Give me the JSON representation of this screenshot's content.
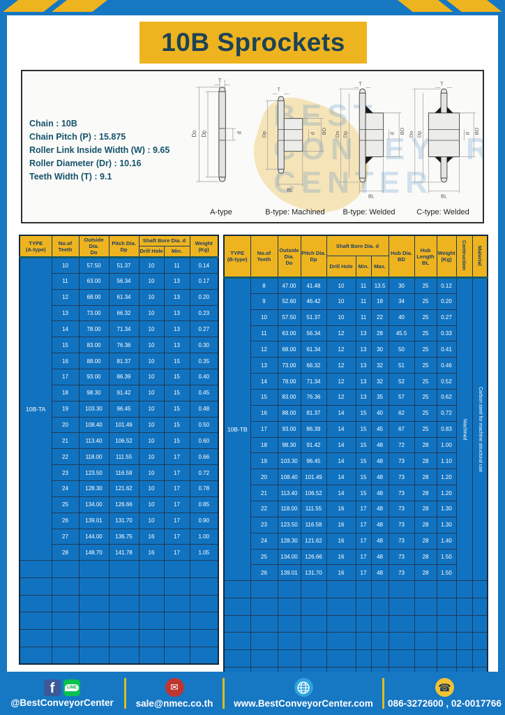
{
  "page": {
    "title": "10B Sprockets"
  },
  "specs": {
    "lines": [
      "Chain : 10B",
      "Chain Pitch (P) : 15.875",
      "Roller Link Inside Width (W) : 9.65",
      "Roller Diameter (Dr) : 10.16",
      "Teeth Width (T) : 9.1"
    ]
  },
  "diagrams": {
    "watermark_lines": [
      "BEST",
      "CONVEYOR",
      "CENTER"
    ],
    "dims": {
      "t": "T",
      "do": "Do",
      "dp": "Dp",
      "d": "d",
      "bd": "BD",
      "bl": "BL"
    },
    "items": [
      {
        "label": "A-type"
      },
      {
        "label": "B-type: Machined"
      },
      {
        "label": "B-type: Welded"
      },
      {
        "label": "C-type: Welded"
      }
    ]
  },
  "table_a": {
    "headers": {
      "type": "TYPE\n(A-type)",
      "teeth": "No.of\nTeeth",
      "outside": "Outside\nDia.\nDo",
      "pitch": "Pitch Dia.\nDp",
      "shaft_bore": "Shaft Bore Dia. d",
      "drill": "Drill Hole",
      "min": "Min.",
      "weight": "Weight\n(Kg)"
    },
    "type_value": "10B-TA",
    "empty_rows": 6,
    "rows": [
      [
        "10",
        "57.50",
        "51.37",
        "10",
        "11",
        "0.14"
      ],
      [
        "11",
        "63.00",
        "56.34",
        "10",
        "13",
        "0.17"
      ],
      [
        "12",
        "68.00",
        "61.34",
        "10",
        "13",
        "0.20"
      ],
      [
        "13",
        "73.00",
        "66.32",
        "10",
        "13",
        "0.23"
      ],
      [
        "14",
        "78.00",
        "71.34",
        "10",
        "13",
        "0.27"
      ],
      [
        "15",
        "83.00",
        "76.36",
        "10",
        "13",
        "0.30"
      ],
      [
        "16",
        "88.00",
        "81.37",
        "10",
        "15",
        "0.35"
      ],
      [
        "17",
        "93.00",
        "86.39",
        "10",
        "15",
        "0.40"
      ],
      [
        "18",
        "98.30",
        "91.42",
        "10",
        "15",
        "0.45"
      ],
      [
        "19",
        "103.30",
        "96.45",
        "10",
        "15",
        "0.48"
      ],
      [
        "20",
        "108.40",
        "101.49",
        "10",
        "15",
        "0.50"
      ],
      [
        "21",
        "113.40",
        "106.52",
        "10",
        "15",
        "0.60"
      ],
      [
        "22",
        "118.00",
        "111.55",
        "10",
        "17",
        "0.66"
      ],
      [
        "23",
        "123.50",
        "116.58",
        "10",
        "17",
        "0.72"
      ],
      [
        "24",
        "128.30",
        "121.62",
        "10",
        "17",
        "0.78"
      ],
      [
        "25",
        "134.00",
        "126.66",
        "10",
        "17",
        "0.85"
      ],
      [
        "26",
        "139.01",
        "131.70",
        "10",
        "17",
        "0.90"
      ],
      [
        "27",
        "144.00",
        "136.75",
        "16",
        "17",
        "1.00"
      ],
      [
        "28",
        "148.70",
        "141.78",
        "16",
        "17",
        "1.05"
      ]
    ]
  },
  "table_b": {
    "headers": {
      "type": "TYPE\n(B-type)",
      "teeth": "No.of\nTeeth",
      "outside": "Outside\nDia.\nDo",
      "pitch": "Pitch Dia.\nDp",
      "shaft_bore": "Shaft Bore Dia. d",
      "drill": "Drill Hole",
      "min": "Min.",
      "max": "Max.",
      "hub_dia": "Hub Dia.\nBD",
      "hub_len": "Hub\nLength\nBL",
      "weight": "Weight\n(Kg)",
      "construction": "Contruction",
      "material": "Material"
    },
    "type_value": "10B-TB",
    "construction_value": "Machined",
    "material_value": "Carbon steel  for machine structural use",
    "empty_rows": 6,
    "rows": [
      [
        "8",
        "47.00",
        "41.48",
        "10",
        "11",
        "13.5",
        "30",
        "25",
        "0.12"
      ],
      [
        "9",
        "52.60",
        "46.42",
        "10",
        "11",
        "18",
        "34",
        "25",
        "0.20"
      ],
      [
        "10",
        "57.50",
        "51.37",
        "10",
        "11",
        "22",
        "40",
        "25",
        "0.27"
      ],
      [
        "11",
        "63.00",
        "56.34",
        "12",
        "13",
        "28",
        "45.5",
        "25",
        "0.33"
      ],
      [
        "12",
        "68.00",
        "61.34",
        "12",
        "13",
        "30",
        "50",
        "25",
        "0.41"
      ],
      [
        "13",
        "73.00",
        "66.32",
        "12",
        "13",
        "32",
        "51",
        "25",
        "0.46"
      ],
      [
        "14",
        "78.00",
        "71.34",
        "12",
        "13",
        "32",
        "52",
        "25",
        "0.52"
      ],
      [
        "15",
        "83.00",
        "76.36",
        "12",
        "13",
        "35",
        "57",
        "25",
        "0.62"
      ],
      [
        "16",
        "88.00",
        "81.37",
        "14",
        "15",
        "40",
        "62",
        "25",
        "0.72"
      ],
      [
        "17",
        "93.00",
        "86.39",
        "14",
        "15",
        "45",
        "67",
        "25",
        "0.83"
      ],
      [
        "18",
        "98.30",
        "91.42",
        "14",
        "15",
        "48",
        "72",
        "28",
        "1.00"
      ],
      [
        "19",
        "103.30",
        "96.45",
        "14",
        "15",
        "48",
        "73",
        "28",
        "1.10"
      ],
      [
        "20",
        "108.40",
        "101.49",
        "14",
        "15",
        "48",
        "73",
        "28",
        "1.20"
      ],
      [
        "21",
        "113.40",
        "106.52",
        "14",
        "15",
        "48",
        "73",
        "28",
        "1.20"
      ],
      [
        "22",
        "118.00",
        "111.55",
        "16",
        "17",
        "48",
        "73",
        "28",
        "1.30"
      ],
      [
        "23",
        "123.50",
        "116.58",
        "16",
        "17",
        "48",
        "73",
        "28",
        "1.30"
      ],
      [
        "24",
        "128.30",
        "121.62",
        "16",
        "17",
        "48",
        "73",
        "28",
        "1.40"
      ],
      [
        "25",
        "134.00",
        "126.66",
        "16",
        "17",
        "48",
        "73",
        "28",
        "1.50"
      ],
      [
        "26",
        "139.01",
        "131.70",
        "16",
        "17",
        "48",
        "73",
        "28",
        "1.50"
      ]
    ]
  },
  "footer": {
    "social_handle": "@BestConveyorCenter",
    "line_label": "LINE",
    "fb_letter": "f",
    "mail_glyph": "✉",
    "phone_glyph": "☎",
    "email": "sale@nmec.co.th",
    "website": "www.BestConveyorCenter.com",
    "phones": "086-3272600 , 02-0017766"
  },
  "colors": {
    "frame_blue": "#1677c2",
    "table_blue": "#1173c0",
    "accent_yellow": "#eeb41f",
    "grid_navy": "#1c3a58",
    "header_text": "#1c3e66",
    "teal_bar": "#175b68"
  }
}
